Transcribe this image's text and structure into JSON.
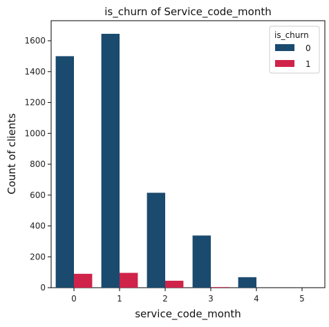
{
  "chart_data": {
    "type": "bar",
    "title": "is_churn of Service_code_month",
    "xlabel": "service_code_month",
    "ylabel": "Count of clients",
    "categories": [
      "0",
      "1",
      "2",
      "3",
      "4",
      "5"
    ],
    "series": [
      {
        "name": "0",
        "values": [
          1500,
          1645,
          615,
          338,
          68,
          0
        ],
        "color": "#1a4a6e"
      },
      {
        "name": "1",
        "values": [
          90,
          96,
          45,
          4,
          0,
          0
        ],
        "color": "#d0234a"
      }
    ],
    "ylim": [
      0,
      1730
    ],
    "yticks": [
      0,
      200,
      400,
      600,
      800,
      1000,
      1200,
      1400,
      1600
    ],
    "grid": false,
    "legend": {
      "title": "is_churn",
      "placement": "top-right"
    }
  }
}
